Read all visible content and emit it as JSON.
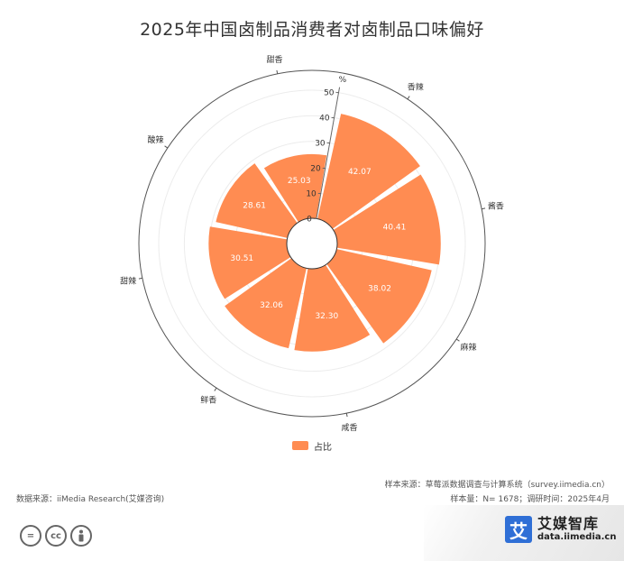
{
  "title": "2025年中国卤制品消费者对卤制品口味偏好",
  "chart_data": {
    "type": "bar",
    "layout": "polar",
    "categories": [
      "香辣",
      "酱香",
      "麻辣",
      "咸香",
      "鲜香",
      "甜辣",
      "酸辣",
      "甜香"
    ],
    "series": [
      {
        "name": "占比",
        "values": [
          42.07,
          40.41,
          38.02,
          32.3,
          32.06,
          30.51,
          28.61,
          25.03
        ]
      }
    ],
    "radial_axis_label": "%",
    "radial_ticks": [
      0,
      10,
      20,
      30,
      40,
      50
    ],
    "ylim": [
      0,
      50
    ],
    "color": "#FF8C52",
    "legend_position": "bottom",
    "grid": true
  },
  "legend": {
    "label": "占比"
  },
  "footer": {
    "sample_source": "样本来源：草莓派数据调查与计算系统（survey.iimedia.cn）",
    "sample_size": "样本量：N= 1678；调研时间：2025年4月",
    "data_source": "数据来源：iiMedia Research(艾媒咨询)"
  },
  "icons": [
    "equal-icon",
    "cc-icon",
    "person-icon"
  ],
  "brand": {
    "name": "艾媒智库",
    "url": "data.iimedia.cn",
    "logo_char": "艾"
  }
}
